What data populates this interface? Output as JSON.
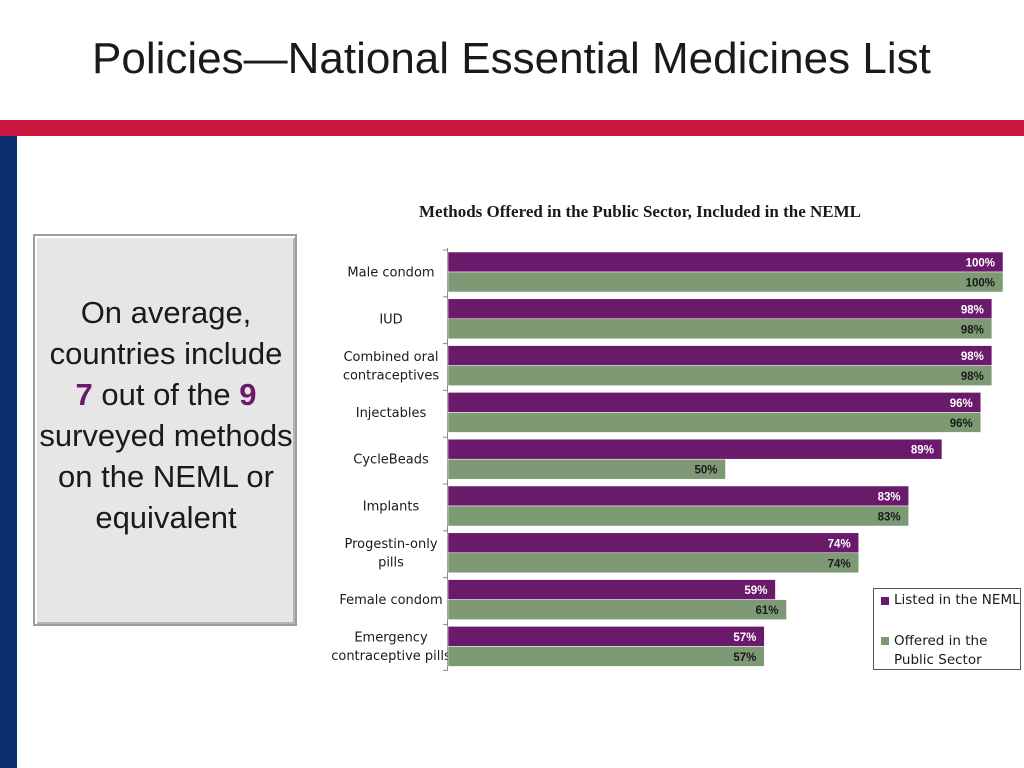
{
  "slide": {
    "title": "Policies—National Essential Medicines List"
  },
  "callout": {
    "part1": "On average, countries include ",
    "count_included": "7",
    "part2": " out of the ",
    "count_surveyed": "9",
    "part3": " surveyed methods on the NEML or equivalent"
  },
  "colors": {
    "brand_red": "#c8163e",
    "brand_blue": "#0b2f6e",
    "listed_purple": "#6a1a6b",
    "offered_green": "#7d9a74"
  },
  "chart_data": {
    "type": "bar",
    "orientation": "horizontal",
    "title": "Methods Offered in the Public Sector, Included in the NEML",
    "categories": [
      [
        "Male condom"
      ],
      [
        "IUD"
      ],
      [
        "Combined oral",
        "contraceptives"
      ],
      [
        "Injectables"
      ],
      [
        "CycleBeads"
      ],
      [
        "Implants"
      ],
      [
        "Progestin-only",
        "pills"
      ],
      [
        "Female condom"
      ],
      [
        "Emergency",
        "contraceptive pills"
      ]
    ],
    "series": [
      {
        "name": "Listed in the NEML",
        "color": "#6a1a6b",
        "values": [
          100,
          98,
          98,
          96,
          89,
          83,
          74,
          59,
          57
        ],
        "labels": [
          "100%",
          "98%",
          "98%",
          "96%",
          "89%",
          "83%",
          "74%",
          "59%",
          "57%"
        ]
      },
      {
        "name": "Offered in the Public Sector",
        "color": "#7d9a74",
        "values": [
          100,
          98,
          98,
          96,
          50,
          83,
          74,
          61,
          57
        ],
        "labels": [
          "100%",
          "98%",
          "98%",
          "96%",
          "50%",
          "83%",
          "74%",
          "61%",
          "57%"
        ]
      }
    ],
    "xlim": [
      0,
      100
    ],
    "legend_position": "bottom-right"
  }
}
